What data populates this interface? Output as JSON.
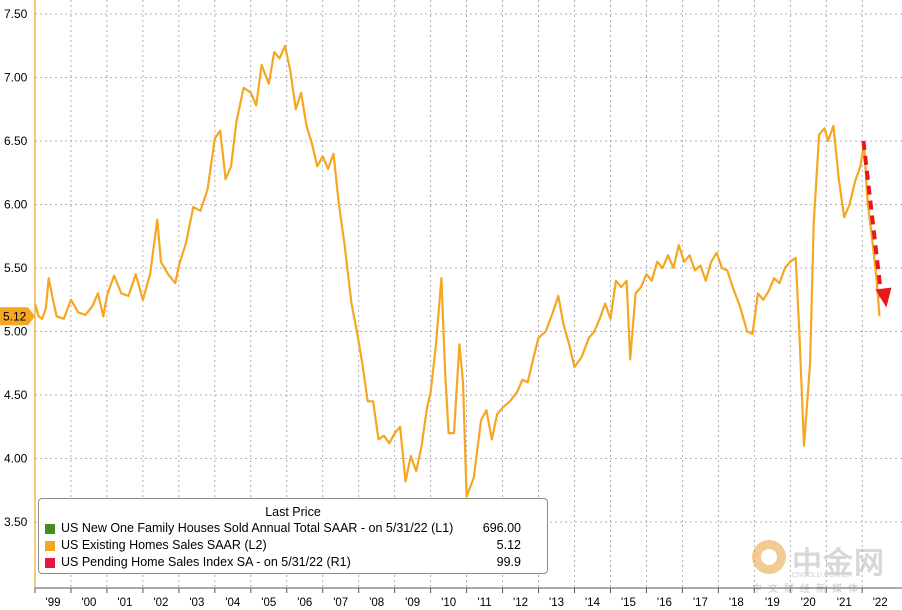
{
  "chart_data": {
    "type": "line",
    "title": "",
    "xlabel": "",
    "ylabel": "",
    "ylim": [
      3.2,
      7.6
    ],
    "yticks": [
      "7.50",
      "7.00",
      "6.50",
      "6.00",
      "5.50",
      "5.00",
      "4.50",
      "4.00",
      "3.50"
    ],
    "ytick_values": [
      7.5,
      7.0,
      6.5,
      6.0,
      5.5,
      5.0,
      4.5,
      4.0,
      3.5
    ],
    "xticks": [
      "'99",
      "'00",
      "'01",
      "'02",
      "'03",
      "'04",
      "'05",
      "'06",
      "'07",
      "'08",
      "'09",
      "'10",
      "'11",
      "'12",
      "'13",
      "'14",
      "'15",
      "'16",
      "'17",
      "'18",
      "'19",
      "'20",
      "'21",
      "'22"
    ],
    "xlim": [
      1999.0,
      2022.55
    ],
    "last_value_label": "5.12",
    "last_value": 5.12,
    "grid": true,
    "series": [
      {
        "name": "US Existing Homes Sales SAAR  (L2)",
        "color": "#f5a623",
        "points": [
          [
            1999.0,
            5.22
          ],
          [
            1999.1,
            5.12
          ],
          [
            1999.2,
            5.1
          ],
          [
            1999.3,
            5.18
          ],
          [
            1999.38,
            5.42
          ],
          [
            1999.5,
            5.25
          ],
          [
            1999.6,
            5.12
          ],
          [
            1999.8,
            5.1
          ],
          [
            2000.0,
            5.25
          ],
          [
            2000.2,
            5.15
          ],
          [
            2000.4,
            5.13
          ],
          [
            2000.6,
            5.2
          ],
          [
            2000.75,
            5.3
          ],
          [
            2000.9,
            5.12
          ],
          [
            2001.0,
            5.28
          ],
          [
            2001.2,
            5.44
          ],
          [
            2001.4,
            5.3
          ],
          [
            2001.6,
            5.28
          ],
          [
            2001.8,
            5.45
          ],
          [
            2002.0,
            5.25
          ],
          [
            2002.2,
            5.45
          ],
          [
            2002.4,
            5.88
          ],
          [
            2002.5,
            5.55
          ],
          [
            2002.7,
            5.45
          ],
          [
            2002.9,
            5.38
          ],
          [
            2003.0,
            5.52
          ],
          [
            2003.2,
            5.7
          ],
          [
            2003.4,
            5.98
          ],
          [
            2003.6,
            5.95
          ],
          [
            2003.8,
            6.12
          ],
          [
            2004.0,
            6.52
          ],
          [
            2004.15,
            6.58
          ],
          [
            2004.3,
            6.2
          ],
          [
            2004.45,
            6.3
          ],
          [
            2004.6,
            6.65
          ],
          [
            2004.8,
            6.92
          ],
          [
            2005.0,
            6.88
          ],
          [
            2005.15,
            6.78
          ],
          [
            2005.3,
            7.1
          ],
          [
            2005.5,
            6.95
          ],
          [
            2005.65,
            7.2
          ],
          [
            2005.8,
            7.15
          ],
          [
            2005.95,
            7.25
          ],
          [
            2006.1,
            7.05
          ],
          [
            2006.25,
            6.75
          ],
          [
            2006.4,
            6.88
          ],
          [
            2006.55,
            6.62
          ],
          [
            2006.7,
            6.48
          ],
          [
            2006.85,
            6.3
          ],
          [
            2007.0,
            6.38
          ],
          [
            2007.15,
            6.28
          ],
          [
            2007.3,
            6.4
          ],
          [
            2007.45,
            6.0
          ],
          [
            2007.6,
            5.7
          ],
          [
            2007.8,
            5.22
          ],
          [
            2007.95,
            5.0
          ],
          [
            2008.1,
            4.75
          ],
          [
            2008.25,
            4.45
          ],
          [
            2008.4,
            4.45
          ],
          [
            2008.55,
            4.15
          ],
          [
            2008.7,
            4.18
          ],
          [
            2008.85,
            4.12
          ],
          [
            2009.0,
            4.2
          ],
          [
            2009.15,
            4.25
          ],
          [
            2009.3,
            3.82
          ],
          [
            2009.45,
            4.02
          ],
          [
            2009.6,
            3.9
          ],
          [
            2009.75,
            4.1
          ],
          [
            2009.9,
            4.4
          ],
          [
            2010.0,
            4.52
          ],
          [
            2010.15,
            4.9
          ],
          [
            2010.3,
            5.42
          ],
          [
            2010.4,
            4.7
          ],
          [
            2010.5,
            4.2
          ],
          [
            2010.65,
            4.2
          ],
          [
            2010.8,
            4.9
          ],
          [
            2010.9,
            4.6
          ],
          [
            2011.0,
            3.7
          ],
          [
            2011.2,
            3.85
          ],
          [
            2011.4,
            4.3
          ],
          [
            2011.55,
            4.38
          ],
          [
            2011.7,
            4.15
          ],
          [
            2011.85,
            4.35
          ],
          [
            2012.0,
            4.4
          ],
          [
            2012.2,
            4.45
          ],
          [
            2012.4,
            4.52
          ],
          [
            2012.55,
            4.62
          ],
          [
            2012.7,
            4.6
          ],
          [
            2012.85,
            4.78
          ],
          [
            2013.0,
            4.95
          ],
          [
            2013.2,
            5.0
          ],
          [
            2013.4,
            5.15
          ],
          [
            2013.55,
            5.28
          ],
          [
            2013.7,
            5.05
          ],
          [
            2013.85,
            4.9
          ],
          [
            2014.0,
            4.72
          ],
          [
            2014.2,
            4.8
          ],
          [
            2014.4,
            4.95
          ],
          [
            2014.55,
            5.0
          ],
          [
            2014.7,
            5.1
          ],
          [
            2014.85,
            5.22
          ],
          [
            2015.0,
            5.1
          ],
          [
            2015.15,
            5.4
          ],
          [
            2015.3,
            5.35
          ],
          [
            2015.45,
            5.4
          ],
          [
            2015.55,
            4.78
          ],
          [
            2015.7,
            5.3
          ],
          [
            2015.85,
            5.35
          ],
          [
            2016.0,
            5.45
          ],
          [
            2016.15,
            5.4
          ],
          [
            2016.3,
            5.55
          ],
          [
            2016.45,
            5.5
          ],
          [
            2016.6,
            5.6
          ],
          [
            2016.75,
            5.5
          ],
          [
            2016.9,
            5.68
          ],
          [
            2017.05,
            5.55
          ],
          [
            2017.2,
            5.6
          ],
          [
            2017.35,
            5.48
          ],
          [
            2017.5,
            5.52
          ],
          [
            2017.65,
            5.4
          ],
          [
            2017.8,
            5.55
          ],
          [
            2017.95,
            5.62
          ],
          [
            2018.1,
            5.5
          ],
          [
            2018.25,
            5.48
          ],
          [
            2018.4,
            5.35
          ],
          [
            2018.6,
            5.2
          ],
          [
            2018.8,
            5.0
          ],
          [
            2018.95,
            4.98
          ],
          [
            2019.1,
            5.3
          ],
          [
            2019.25,
            5.25
          ],
          [
            2019.4,
            5.32
          ],
          [
            2019.55,
            5.42
          ],
          [
            2019.7,
            5.38
          ],
          [
            2019.85,
            5.5
          ],
          [
            2020.0,
            5.55
          ],
          [
            2020.15,
            5.58
          ],
          [
            2020.25,
            5.0
          ],
          [
            2020.38,
            4.1
          ],
          [
            2020.55,
            4.75
          ],
          [
            2020.65,
            5.85
          ],
          [
            2020.8,
            6.55
          ],
          [
            2020.95,
            6.6
          ],
          [
            2021.05,
            6.5
          ],
          [
            2021.2,
            6.62
          ],
          [
            2021.35,
            6.2
          ],
          [
            2021.5,
            5.9
          ],
          [
            2021.65,
            6.0
          ],
          [
            2021.8,
            6.18
          ],
          [
            2021.95,
            6.3
          ],
          [
            2022.05,
            6.48
          ],
          [
            2022.15,
            6.02
          ],
          [
            2022.28,
            5.72
          ],
          [
            2022.4,
            5.41
          ],
          [
            2022.48,
            5.12
          ]
        ]
      }
    ],
    "legend": {
      "title": "Last Price",
      "placement": "bottom-left",
      "entries": [
        {
          "name": "US New One Family Houses Sold Annual Total SAAR -  on 5/31/22  (L1)",
          "value": "696.00",
          "color": "#4a8a22"
        },
        {
          "name": "US Existing Homes Sales SAAR  (L2)",
          "value": "5.12",
          "color": "#f5a623"
        },
        {
          "name": "US Pending Home Sales Index SA -  on 5/31/22  (R1)",
          "value": "99.9",
          "color": "#e8173f"
        }
      ]
    },
    "annotation": {
      "type": "dashed-down-arrow",
      "color": "#e8181a"
    }
  },
  "watermark": {
    "brand": "中金网",
    "url": "CNGOLD.COM.CN",
    "subtitle": "中文财经新媒体"
  }
}
